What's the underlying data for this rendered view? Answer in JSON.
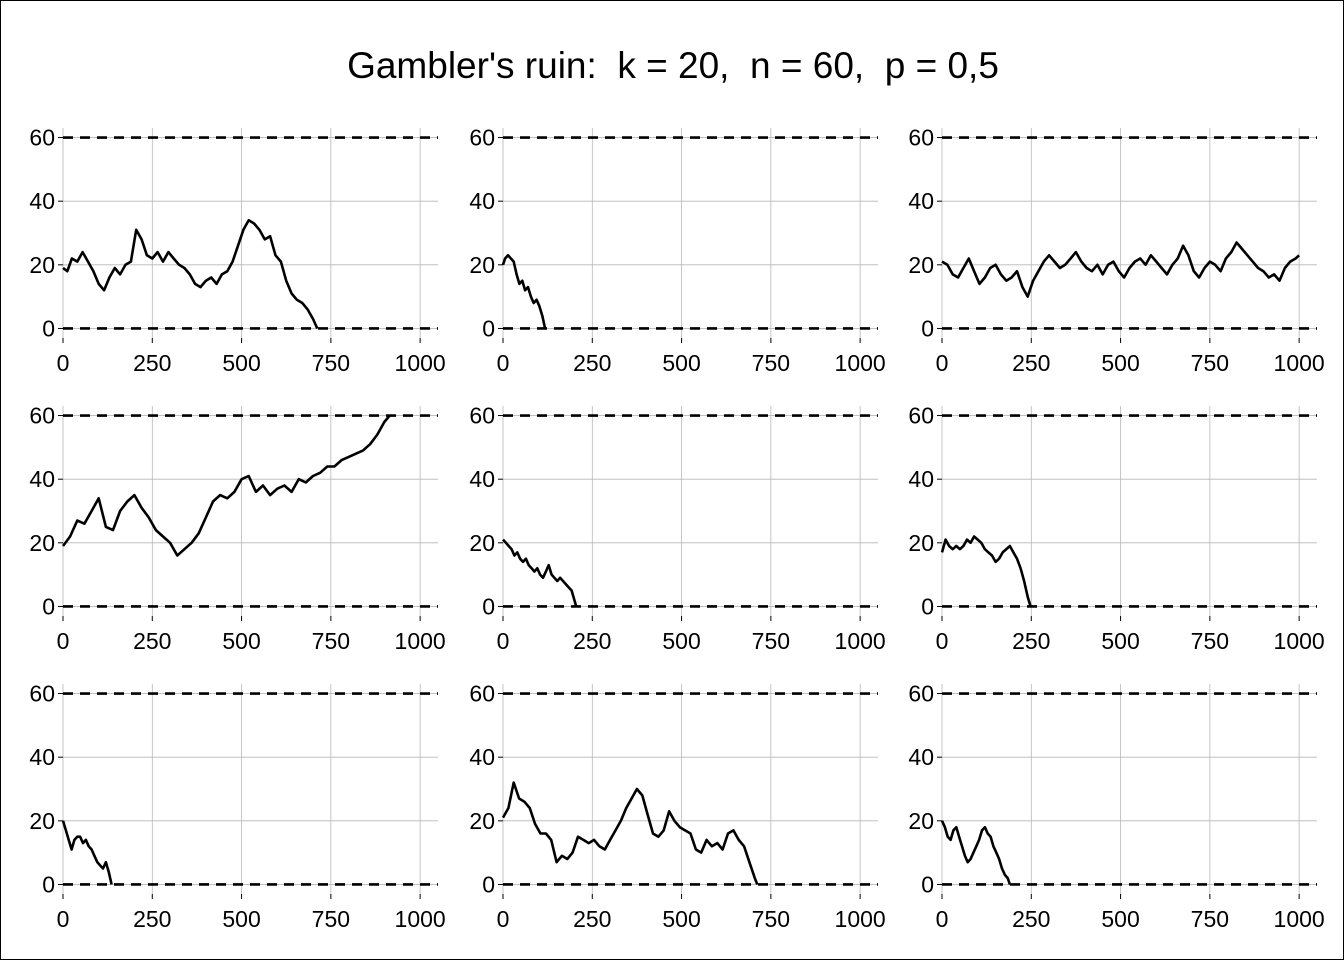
{
  "title": "Gambler's ruin:  k = 20,  n = 60,  p = 0,5",
  "chart_data": {
    "type": "line",
    "grid": true,
    "layout": "3x3",
    "xlim": [
      0,
      1050
    ],
    "ylim": [
      -3,
      63
    ],
    "xticks": [
      0,
      250,
      500,
      750,
      1000
    ],
    "yticks": [
      0,
      20,
      40,
      60
    ],
    "reference_lines": [
      0,
      60
    ],
    "line_color": "#000000",
    "panels": [
      {
        "x": [
          0,
          12,
          25,
          40,
          55,
          70,
          85,
          100,
          115,
          130,
          145,
          160,
          175,
          190,
          205,
          220,
          235,
          250,
          265,
          280,
          295,
          310,
          325,
          340,
          355,
          370,
          385,
          400,
          415,
          430,
          445,
          460,
          475,
          490,
          505,
          520,
          535,
          550,
          565,
          580,
          595,
          610,
          625,
          640,
          655,
          670,
          685,
          700,
          712
        ],
        "y": [
          19,
          18,
          22,
          21,
          24,
          21,
          18,
          14,
          12,
          16,
          19,
          17,
          20,
          21,
          31,
          28,
          23,
          22,
          24,
          21,
          24,
          22,
          20,
          19,
          17,
          14,
          13,
          15,
          16,
          14,
          17,
          18,
          21,
          26,
          31,
          34,
          33,
          31,
          28,
          29,
          23,
          21,
          15,
          11,
          9,
          8,
          6,
          3,
          0
        ]
      },
      {
        "x": [
          0,
          6,
          14,
          22,
          30,
          38,
          46,
          54,
          62,
          70,
          78,
          86,
          94,
          102,
          110,
          118
        ],
        "y": [
          20,
          22,
          23,
          22,
          21,
          17,
          14,
          15,
          12,
          13,
          10,
          8,
          9,
          7,
          4,
          0
        ]
      },
      {
        "x": [
          0,
          15,
          30,
          45,
          60,
          75,
          90,
          105,
          120,
          135,
          150,
          165,
          180,
          195,
          210,
          225,
          240,
          255,
          270,
          285,
          300,
          315,
          330,
          345,
          360,
          375,
          390,
          405,
          420,
          435,
          450,
          465,
          480,
          495,
          510,
          525,
          540,
          555,
          570,
          585,
          600,
          615,
          630,
          645,
          660,
          675,
          690,
          705,
          720,
          735,
          750,
          765,
          780,
          795,
          810,
          825,
          840,
          855,
          870,
          885,
          900,
          915,
          930,
          945,
          960,
          975,
          990,
          1000
        ],
        "y": [
          21,
          20,
          17,
          16,
          19,
          22,
          18,
          14,
          16,
          19,
          20,
          17,
          15,
          16,
          18,
          13,
          10,
          15,
          18,
          21,
          23,
          21,
          19,
          20,
          22,
          24,
          21,
          19,
          18,
          20,
          17,
          20,
          21,
          18,
          16,
          19,
          21,
          22,
          20,
          23,
          21,
          19,
          17,
          20,
          22,
          26,
          23,
          18,
          16,
          19,
          21,
          20,
          18,
          22,
          24,
          27,
          25,
          23,
          21,
          19,
          18,
          16,
          17,
          15,
          19,
          21,
          22,
          23
        ]
      },
      {
        "x": [
          0,
          20,
          40,
          60,
          80,
          100,
          120,
          140,
          160,
          180,
          200,
          220,
          240,
          260,
          280,
          300,
          320,
          340,
          360,
          380,
          400,
          420,
          440,
          460,
          480,
          500,
          520,
          540,
          560,
          580,
          600,
          620,
          640,
          660,
          680,
          700,
          720,
          740,
          760,
          780,
          800,
          820,
          840,
          860,
          880,
          900,
          915
        ],
        "y": [
          19,
          22,
          27,
          26,
          30,
          34,
          25,
          24,
          30,
          33,
          35,
          31,
          28,
          24,
          22,
          20,
          16,
          18,
          20,
          23,
          28,
          33,
          35,
          34,
          36,
          40,
          41,
          36,
          38,
          35,
          37,
          38,
          36,
          40,
          39,
          41,
          42,
          44,
          44,
          46,
          47,
          48,
          49,
          51,
          54,
          58,
          60
        ]
      },
      {
        "x": [
          0,
          8,
          16,
          24,
          32,
          40,
          48,
          56,
          64,
          72,
          80,
          88,
          96,
          104,
          112,
          120,
          128,
          136,
          144,
          152,
          160,
          168,
          176,
          184,
          192,
          200,
          205
        ],
        "y": [
          21,
          20,
          19,
          18,
          16,
          17,
          15,
          14,
          15,
          13,
          12,
          11,
          12,
          10,
          9,
          11,
          13,
          10,
          9,
          8,
          9,
          8,
          7,
          6,
          5,
          2,
          0
        ]
      },
      {
        "x": [
          0,
          10,
          20,
          30,
          40,
          50,
          60,
          70,
          80,
          90,
          100,
          110,
          120,
          130,
          140,
          150,
          160,
          170,
          180,
          190,
          200,
          210,
          220,
          230,
          240,
          248
        ],
        "y": [
          17,
          21,
          19,
          18,
          19,
          18,
          19,
          21,
          20,
          22,
          21,
          20,
          18,
          17,
          16,
          14,
          15,
          17,
          18,
          19,
          17,
          15,
          12,
          8,
          3,
          0
        ]
      },
      {
        "x": [
          0,
          8,
          16,
          24,
          32,
          40,
          48,
          56,
          64,
          72,
          80,
          88,
          96,
          104,
          112,
          120,
          128,
          136
        ],
        "y": [
          20,
          17,
          14,
          11,
          14,
          15,
          15,
          13,
          14,
          12,
          11,
          9,
          7,
          6,
          5,
          7,
          4,
          0
        ]
      },
      {
        "x": [
          0,
          15,
          30,
          45,
          60,
          75,
          90,
          105,
          120,
          135,
          150,
          165,
          180,
          195,
          210,
          225,
          240,
          255,
          270,
          285,
          300,
          315,
          330,
          345,
          360,
          375,
          390,
          405,
          420,
          435,
          450,
          465,
          480,
          495,
          510,
          525,
          540,
          555,
          570,
          585,
          600,
          615,
          630,
          645,
          660,
          675,
          690,
          705,
          712
        ],
        "y": [
          21,
          24,
          32,
          27,
          26,
          24,
          19,
          16,
          16,
          14,
          7,
          9,
          8,
          10,
          15,
          14,
          13,
          14,
          12,
          11,
          14,
          17,
          20,
          24,
          27,
          30,
          28,
          22,
          16,
          15,
          17,
          23,
          20,
          18,
          17,
          16,
          11,
          10,
          14,
          12,
          13,
          11,
          16,
          17,
          14,
          12,
          7,
          2,
          0
        ]
      },
      {
        "x": [
          0,
          8,
          16,
          24,
          32,
          40,
          48,
          56,
          64,
          72,
          80,
          88,
          96,
          104,
          112,
          120,
          128,
          136,
          144,
          152,
          160,
          168,
          176,
          184,
          190
        ],
        "y": [
          20,
          18,
          15,
          14,
          17,
          18,
          15,
          12,
          9,
          7,
          8,
          10,
          12,
          14,
          17,
          18,
          16,
          15,
          12,
          10,
          8,
          5,
          3,
          2,
          0
        ]
      }
    ]
  }
}
